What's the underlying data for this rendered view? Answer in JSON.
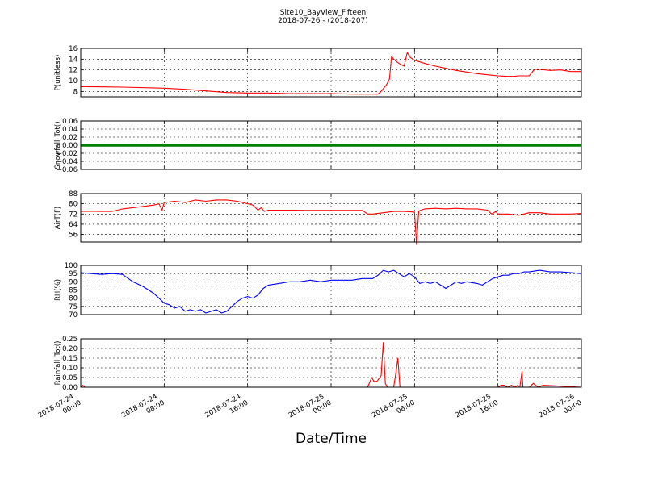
{
  "figure": {
    "title_line1": "Site10_BayView_Fifteen",
    "title_line2": "2018-07-26 - (2018-207)",
    "xlabel": "Date/Time",
    "x_ticks": [
      {
        "t": 0,
        "label": [
          "2018-07-24",
          "00:00"
        ]
      },
      {
        "t": 8,
        "label": [
          "2018-07-24",
          "08:00"
        ]
      },
      {
        "t": 16,
        "label": [
          "2018-07-24",
          "16:00"
        ]
      },
      {
        "t": 24,
        "label": [
          "2018-07-25",
          "00:00"
        ]
      },
      {
        "t": 32,
        "label": [
          "2018-07-25",
          "08:00"
        ]
      },
      {
        "t": 40,
        "label": [
          "2018-07-25",
          "16:00"
        ]
      },
      {
        "t": 48,
        "label": [
          "2018-07-26",
          "00:00"
        ]
      }
    ]
  },
  "chart_data": [
    {
      "type": "line",
      "ylabel": "P(unitless)",
      "ylim": [
        7,
        16
      ],
      "yticks": [
        8,
        10,
        12,
        14,
        16
      ],
      "ytick_labels": [
        "8",
        "10",
        "12",
        "14",
        "16"
      ],
      "grid": true,
      "color": "#ff0000",
      "x": [
        0,
        4,
        8,
        10,
        12,
        14,
        16,
        18,
        20,
        22,
        24,
        26,
        27,
        28,
        28.5,
        28.8,
        29,
        29.3,
        29.6,
        29.8,
        30,
        30.3,
        30.6,
        31,
        31.3,
        31.6,
        32,
        33,
        34,
        35,
        36,
        37,
        38,
        39,
        40,
        41,
        41.5,
        42,
        42.5,
        43,
        43.5,
        44,
        45,
        46,
        47,
        48
      ],
      "y": [
        8.9,
        8.8,
        8.6,
        8.4,
        8.1,
        7.8,
        7.7,
        7.7,
        7.6,
        7.6,
        7.6,
        7.5,
        7.5,
        7.5,
        7.5,
        8.0,
        8.5,
        9.2,
        10.3,
        14.5,
        14.0,
        13.5,
        13.1,
        12.7,
        15.2,
        14.3,
        13.8,
        13.2,
        12.7,
        12.3,
        11.9,
        11.6,
        11.3,
        11.1,
        10.9,
        10.8,
        10.8,
        10.9,
        10.9,
        10.9,
        12.1,
        12.1,
        11.9,
        12.0,
        11.7,
        11.7
      ]
    },
    {
      "type": "line",
      "ylabel": "Snowfall_Tot()",
      "ylim": [
        -0.06,
        0.06
      ],
      "yticks": [
        -0.06,
        -0.04,
        -0.02,
        0.0,
        0.02,
        0.04,
        0.06
      ],
      "ytick_labels": [
        "−0.06",
        "−0.04",
        "−0.02",
        "0.00",
        "0.02",
        "0.04",
        "0.06"
      ],
      "grid": true,
      "color": "#008000",
      "x": [
        0,
        48
      ],
      "y": [
        0,
        0
      ]
    },
    {
      "type": "line",
      "ylabel": "AirT(F)",
      "ylim": [
        50,
        88
      ],
      "yticks": [
        56,
        64,
        72,
        80,
        88
      ],
      "ytick_labels": [
        "56",
        "64",
        "72",
        "80",
        "88"
      ],
      "grid": true,
      "color": "#ff0000",
      "x": [
        0,
        1,
        2,
        3,
        4,
        5,
        6,
        7,
        7.5,
        7.8,
        8,
        9,
        10,
        11,
        12,
        13,
        14,
        15,
        16,
        16.5,
        17,
        17.3,
        17.6,
        18,
        20,
        22,
        24,
        26,
        27,
        27.5,
        28,
        29,
        30,
        31,
        32,
        32.2,
        32.4,
        32.6,
        33,
        34,
        35,
        36,
        37,
        38,
        39,
        39.4,
        39.8,
        40,
        41,
        42,
        43,
        44,
        45,
        46,
        47,
        48
      ],
      "y": [
        74,
        74.2,
        74,
        74,
        76,
        77,
        78,
        79,
        80,
        75,
        81,
        82,
        81,
        83,
        82,
        83,
        83,
        82,
        80,
        79,
        75,
        77,
        74,
        75,
        75,
        74.8,
        74.8,
        74.8,
        74.8,
        72,
        72,
        73,
        74,
        74,
        73.5,
        48,
        74,
        75,
        76,
        76.5,
        76,
        76.5,
        76,
        76,
        75,
        72,
        74,
        72,
        72,
        71,
        73,
        73,
        72,
        72,
        72,
        72.5
      ]
    },
    {
      "type": "line",
      "ylabel": "RH(%)",
      "ylim": [
        70,
        100
      ],
      "yticks": [
        70,
        75,
        80,
        85,
        90,
        95,
        100
      ],
      "ytick_labels": [
        "70",
        "75",
        "80",
        "85",
        "90",
        "95",
        "100"
      ],
      "grid": true,
      "color": "#0000ff",
      "x": [
        0,
        1,
        2,
        3,
        4,
        5,
        6,
        7,
        7.5,
        8,
        8.5,
        9,
        9.5,
        10,
        10.5,
        11,
        11.5,
        12,
        12.5,
        13,
        13.5,
        14,
        14.5,
        15,
        15.5,
        16,
        16.5,
        17,
        17.5,
        18,
        19,
        20,
        21,
        22,
        23,
        24,
        25,
        26,
        27,
        28,
        28.5,
        29,
        29.5,
        30,
        30.5,
        31,
        31.5,
        32,
        32.5,
        33,
        33.5,
        34,
        34.5,
        35,
        35.5,
        36,
        36.5,
        37,
        38,
        38.5,
        39,
        39.5,
        40,
        40.5,
        41,
        41.5,
        42,
        42.5,
        43,
        44,
        45,
        46,
        47,
        48
      ],
      "y": [
        95.5,
        95,
        94.5,
        95,
        94.5,
        90,
        87,
        83,
        80,
        77,
        76,
        74,
        75,
        72,
        73,
        72,
        73,
        71,
        72,
        73,
        71,
        72,
        75,
        78,
        80,
        81,
        80,
        82,
        86,
        88,
        89,
        90,
        90,
        91,
        90,
        91,
        91,
        91,
        92,
        92,
        94,
        97,
        96,
        97,
        95,
        93,
        95,
        93,
        89,
        90,
        89,
        90,
        88,
        86,
        88,
        90,
        89,
        90,
        89,
        88,
        90,
        92,
        93,
        94,
        94,
        95,
        95,
        96,
        96,
        97,
        96,
        96,
        95.5,
        95
      ]
    },
    {
      "type": "line",
      "ylabel": "Rainfall_Tot()",
      "ylim": [
        0,
        0.25
      ],
      "yticks": [
        0,
        0.05,
        0.1,
        0.15,
        0.2,
        0.25
      ],
      "ytick_labels": [
        "0.00",
        "0.05",
        "0.10",
        "0.15",
        "0.20",
        "0.25"
      ],
      "grid": true,
      "color": "#ff0000",
      "x": [
        0,
        0.2,
        0.4,
        0.6,
        27.5,
        27.9,
        28.1,
        28.4,
        28.8,
        29.0,
        29.2,
        29.4,
        30.0,
        30.2,
        30.4,
        30.6,
        30.9,
        31.0,
        40,
        40.3,
        40.6,
        40.9,
        41.3,
        41.6,
        41.9,
        42.0,
        42.1,
        42.3,
        42.4,
        42.5,
        43,
        43.4,
        43.6,
        43.9,
        44.3,
        48
      ],
      "y": [
        0,
        0.01,
        0,
        0,
        0,
        0.05,
        0.03,
        0.03,
        0.06,
        0.23,
        0.02,
        0,
        0,
        0.07,
        0.15,
        0,
        0,
        0,
        0,
        0.01,
        0.01,
        0,
        0.01,
        0,
        0.01,
        0,
        0,
        0.08,
        0,
        0,
        0,
        0.02,
        0.01,
        0,
        0.01,
        0
      ]
    }
  ]
}
